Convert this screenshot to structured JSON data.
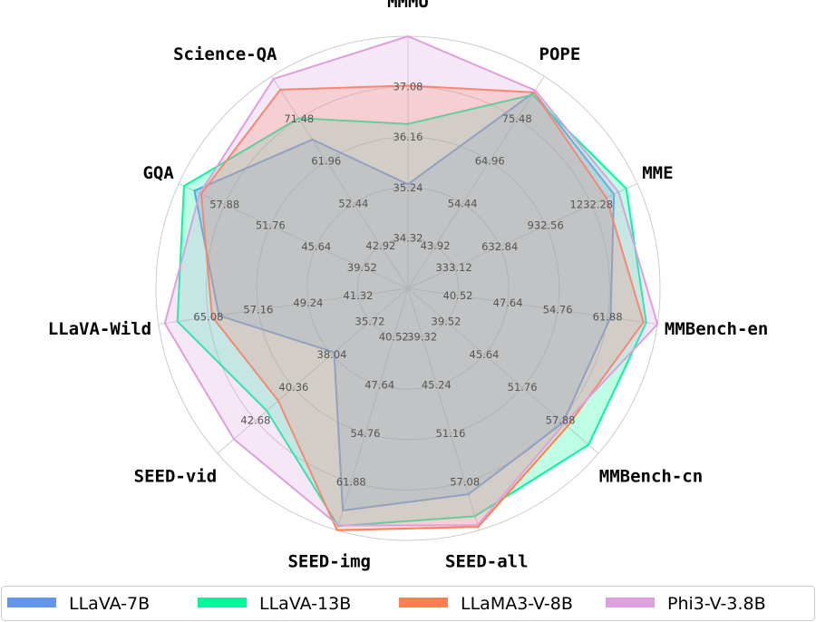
{
  "chart_data": {
    "type": "radar",
    "title": "",
    "axes": [
      {
        "label": "MMMU",
        "ticks": [
          "34.32",
          "35.24",
          "36.16",
          "37.08"
        ],
        "range": [
          33.4,
          38.0
        ]
      },
      {
        "label": "POPE",
        "ticks": [
          "43.92",
          "54.44",
          "64.96",
          "75.48"
        ],
        "range": [
          33.4,
          86.0
        ]
      },
      {
        "label": "MME",
        "ticks": [
          "333.12",
          "632.84",
          "932.56",
          "1232.28"
        ],
        "range": [
          33.4,
          1532.0
        ]
      },
      {
        "label": "MMBench-en",
        "ticks": [
          "40.52",
          "47.64",
          "54.76",
          "61.88"
        ],
        "range": [
          33.4,
          69.0
        ]
      },
      {
        "label": "MMBench-cn",
        "ticks": [
          "39.52",
          "45.64",
          "51.76",
          "57.88"
        ],
        "range": [
          33.4,
          64.0
        ]
      },
      {
        "label": "SEED-all",
        "ticks": [
          "39.32",
          "45.24",
          "51.16",
          "57.08"
        ],
        "range": [
          33.4,
          63.0
        ]
      },
      {
        "label": "SEED-img",
        "ticks": [
          "40.52",
          "47.64",
          "54.76",
          "61.88"
        ],
        "range": [
          33.4,
          69.0
        ]
      },
      {
        "label": "SEED-vid",
        "ticks": [
          "35.72",
          "38.04",
          "40.36",
          "42.68"
        ],
        "range": [
          33.4,
          45.0
        ]
      },
      {
        "label": "LLaVA-Wild",
        "ticks": [
          "41.32",
          "49.24",
          "57.16",
          "65.08"
        ],
        "range": [
          33.4,
          73.0
        ]
      },
      {
        "label": "GQA",
        "ticks": [
          "39.52",
          "45.64",
          "51.76",
          "57.88"
        ],
        "range": [
          33.4,
          64.0
        ]
      },
      {
        "label": "Science-QA",
        "ticks": [
          "42.92",
          "52.44",
          "61.96",
          "71.48"
        ],
        "range": [
          33.4,
          81.0
        ]
      }
    ],
    "series": [
      {
        "name": "LLaVA-7B",
        "color": "#6495ed",
        "values": [
          35.3,
          82.0,
          1380,
          62.3,
          58.3,
          58.6,
          66.1,
          37.9,
          63.4,
          61.9,
          66.8
        ]
      },
      {
        "name": "LLaVA-13B",
        "color": "#00fa9a",
        "values": [
          36.4,
          81.4,
          1460,
          67.4,
          62.4,
          61.3,
          68.4,
          42.0,
          70.0,
          63.3,
          71.6
        ]
      },
      {
        "name": "LLaMA3-V-8B",
        "color": "#ff7f50",
        "values": [
          37.1,
          82.0,
          1330,
          67.0,
          59.0,
          62.6,
          69.0,
          41.3,
          64.5,
          61.0,
          78.0
        ]
      },
      {
        "name": "Phi3-V-3.8B",
        "color": "#dda0dd",
        "values": [
          38.0,
          82.5,
          1410,
          69.0,
          58.5,
          62.4,
          68.3,
          44.0,
          72.0,
          61.2,
          80.4
        ]
      }
    ],
    "grid": true,
    "legend": "bottom"
  }
}
